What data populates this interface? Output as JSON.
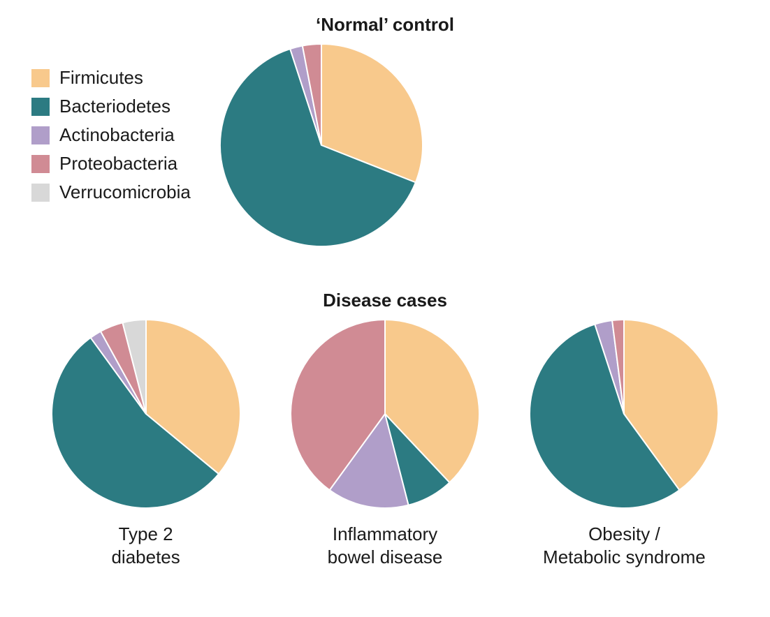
{
  "titles": {
    "top": "‘Normal’ control",
    "bottom": "Disease cases"
  },
  "legend": {
    "items": [
      {
        "label": "Firmicutes",
        "color": "#f8c98c"
      },
      {
        "label": "Bacteriodetes",
        "color": "#2c7b82"
      },
      {
        "label": "Actinobacteria",
        "color": "#b09ec9"
      },
      {
        "label": "Proteobacteria",
        "color": "#d08b94"
      },
      {
        "label": "Verrucomicrobia",
        "color": "#d8d8d8"
      }
    ]
  },
  "style": {
    "background_color": "#ffffff",
    "text_color": "#1a1a1a",
    "slice_border_color": "#ffffff",
    "slice_border_width": 2,
    "title_fontsize": 26,
    "label_fontsize": 26,
    "legend_fontsize": 26,
    "swatch_size": 26,
    "pie_radius_large": 145,
    "pie_radius_small": 135,
    "font_family": "Lucida Sans Unicode, Lucida Grande, Segoe UI, Helvetica Neue, Arial, sans-serif"
  },
  "charts": {
    "normal": {
      "type": "pie",
      "start_angle_deg": -90,
      "slices": [
        {
          "category": "Firmicutes",
          "value": 31,
          "color": "#f8c98c"
        },
        {
          "category": "Bacteriodetes",
          "value": 64,
          "color": "#2c7b82"
        },
        {
          "category": "Actinobacteria",
          "value": 2,
          "color": "#b09ec9"
        },
        {
          "category": "Proteobacteria",
          "value": 3,
          "color": "#d08b94"
        }
      ]
    },
    "type2_diabetes": {
      "type": "pie",
      "label_line1": "Type 2",
      "label_line2": "diabetes",
      "start_angle_deg": -90,
      "slices": [
        {
          "category": "Firmicutes",
          "value": 36,
          "color": "#f8c98c"
        },
        {
          "category": "Bacteriodetes",
          "value": 54,
          "color": "#2c7b82"
        },
        {
          "category": "Actinobacteria",
          "value": 2,
          "color": "#b09ec9"
        },
        {
          "category": "Proteobacteria",
          "value": 4,
          "color": "#d08b94"
        },
        {
          "category": "Verrucomicrobia",
          "value": 4,
          "color": "#d8d8d8"
        }
      ]
    },
    "ibd": {
      "type": "pie",
      "label_line1": "Inflammatory",
      "label_line2": "bowel disease",
      "start_angle_deg": -90,
      "slices": [
        {
          "category": "Firmicutes",
          "value": 38,
          "color": "#f8c98c"
        },
        {
          "category": "Bacteriodetes",
          "value": 8,
          "color": "#2c7b82"
        },
        {
          "category": "Actinobacteria",
          "value": 14,
          "color": "#b09ec9"
        },
        {
          "category": "Proteobacteria",
          "value": 40,
          "color": "#d08b94"
        }
      ]
    },
    "obesity": {
      "type": "pie",
      "label_line1": "Obesity /",
      "label_line2": "Metabolic syndrome",
      "start_angle_deg": -90,
      "slices": [
        {
          "category": "Firmicutes",
          "value": 40,
          "color": "#f8c98c"
        },
        {
          "category": "Bacteriodetes",
          "value": 55,
          "color": "#2c7b82"
        },
        {
          "category": "Actinobacteria",
          "value": 3,
          "color": "#b09ec9"
        },
        {
          "category": "Proteobacteria",
          "value": 2,
          "color": "#d08b94"
        }
      ]
    }
  }
}
